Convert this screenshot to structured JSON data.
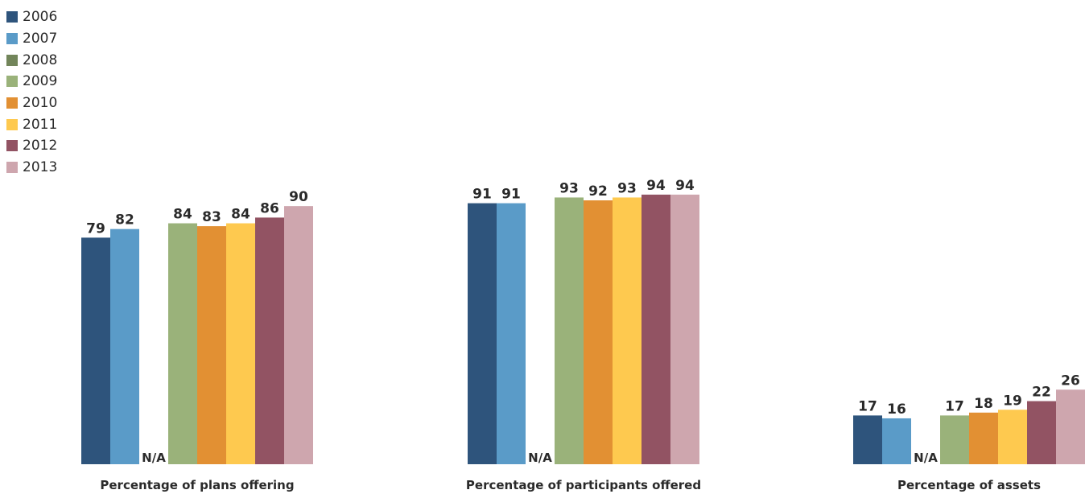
{
  "chart_data": {
    "type": "bar",
    "categories": [
      "Percentage of plans offering",
      "Percentage of participants offered",
      "Percentage of assets"
    ],
    "series": [
      {
        "name": "2006",
        "color": "#2e547c",
        "values": [
          79,
          91,
          17
        ]
      },
      {
        "name": "2007",
        "color": "#5a9bc8",
        "values": [
          82,
          91,
          16
        ]
      },
      {
        "name": "2008",
        "color": "#72855a",
        "values": [
          null,
          null,
          null
        ]
      },
      {
        "name": "2009",
        "color": "#9ab27a",
        "values": [
          84,
          93,
          17
        ]
      },
      {
        "name": "2010",
        "color": "#e29033",
        "values": [
          83,
          92,
          18
        ]
      },
      {
        "name": "2011",
        "color": "#fec94f",
        "values": [
          84,
          93,
          19
        ]
      },
      {
        "name": "2012",
        "color": "#925363",
        "values": [
          86,
          94,
          22
        ]
      },
      {
        "name": "2013",
        "color": "#cea6ae",
        "values": [
          90,
          94,
          26
        ]
      }
    ],
    "missing_label": "N/A",
    "ylim": [
      0,
      100
    ],
    "grid": false,
    "legend_position": "top-left",
    "data_labels": true
  }
}
